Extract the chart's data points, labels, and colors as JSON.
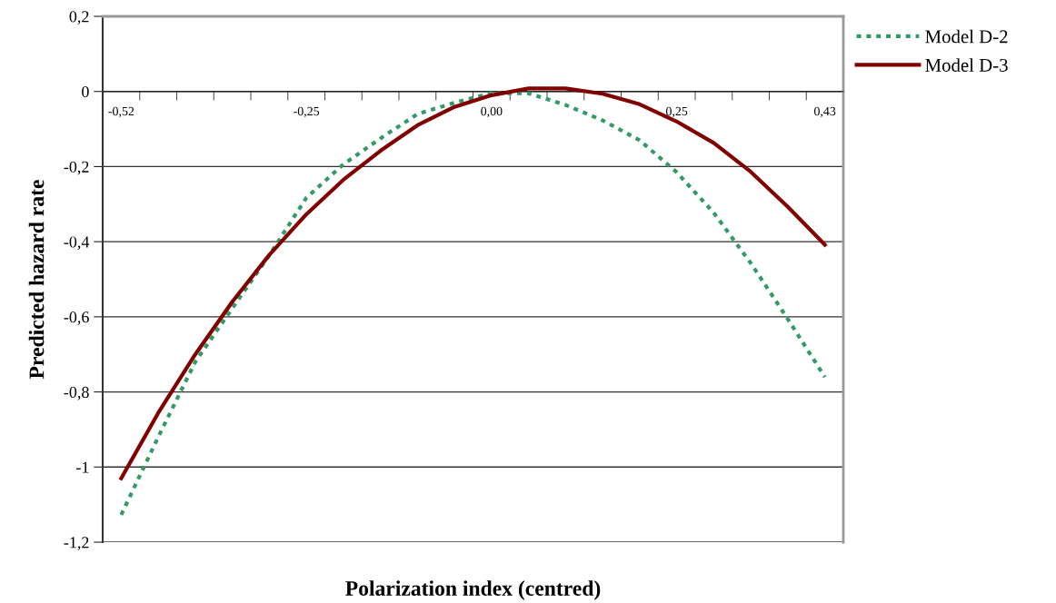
{
  "chart_data": {
    "type": "line",
    "xlabel": "Polarization index (centred)",
    "ylabel": "Predicted hazard rate",
    "categories": [
      "-0,52",
      null,
      null,
      null,
      null,
      "-0,25",
      null,
      null,
      null,
      null,
      "0,00",
      null,
      null,
      null,
      null,
      "0,25",
      null,
      null,
      null,
      "0,43"
    ],
    "series": [
      {
        "name": "Model D-2",
        "color": "#339966",
        "line_style": "dotted",
        "values": [
          -1.127,
          -0.92,
          -0.72,
          -0.577,
          -0.436,
          -0.283,
          -0.194,
          -0.125,
          -0.06,
          -0.03,
          -0.004,
          -0.005,
          -0.036,
          -0.077,
          -0.13,
          -0.215,
          -0.323,
          -0.457,
          -0.606,
          -0.76
        ]
      },
      {
        "name": "Model D-3",
        "color": "#800000",
        "line_style": "solid",
        "values": [
          -1.03,
          -0.856,
          -0.7,
          -0.56,
          -0.435,
          -0.327,
          -0.235,
          -0.158,
          -0.09,
          -0.041,
          -0.01,
          0.008,
          0.008,
          -0.006,
          -0.034,
          -0.08,
          -0.137,
          -0.214,
          -0.307,
          -0.408
        ]
      }
    ],
    "ylim": [
      -1.2,
      0.2
    ],
    "yticks": [
      {
        "value": -1.2,
        "label": "-1,2"
      },
      {
        "value": -1,
        "label": "-1"
      },
      {
        "value": -0.8,
        "label": "-0,8"
      },
      {
        "value": -0.6,
        "label": "-0,6"
      },
      {
        "value": -0.4,
        "label": "-0,4"
      },
      {
        "value": -0.2,
        "label": "-0,2"
      },
      {
        "value": 0,
        "label": "0"
      },
      {
        "value": 0.2,
        "label": "0,2"
      }
    ],
    "grid": "y",
    "legend": "top right"
  }
}
